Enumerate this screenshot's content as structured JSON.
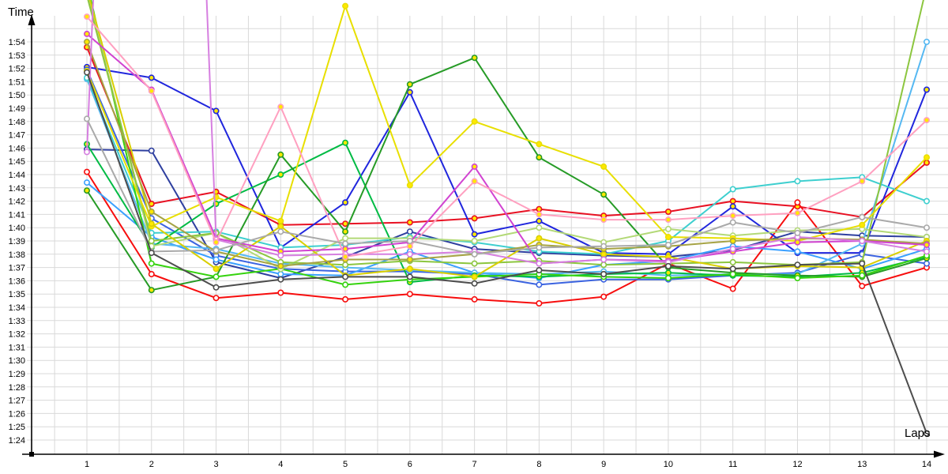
{
  "page": {
    "background": "#ffffff"
  },
  "chart_data": {
    "type": "line",
    "title": "",
    "xlabel": "Laps",
    "ylabel": "Time",
    "x": [
      1,
      2,
      3,
      4,
      5,
      6,
      7,
      8,
      9,
      10,
      11,
      12,
      13,
      14
    ],
    "x_labels": [
      "1",
      "2",
      "3",
      "4",
      "5",
      "6",
      "7",
      "8",
      "9",
      "10",
      "11",
      "12",
      "13",
      "14"
    ],
    "y_tick_labels": [
      "1:54",
      "1:53",
      "1:52",
      "1:51",
      "1:50",
      "1:49",
      "1:48",
      "1:47",
      "1:46",
      "1:45",
      "1:44",
      "1:43",
      "1:42",
      "1:41",
      "1:40",
      "1:39",
      "1:38",
      "1:37",
      "1:36",
      "1:35",
      "1:34",
      "1:33",
      "1:32",
      "1:31",
      "1:30",
      "1:29",
      "1:28",
      "1:27",
      "1:26",
      "1:25",
      "1:24"
    ],
    "y_unit": "lap time m:ss, stored as total seconds",
    "ylim_sec": [
      84,
      115
    ],
    "grid": true,
    "legend_position": "none",
    "grid_color": "#d9d9d9",
    "axis_color": "#000000",
    "series": [
      {
        "name": "red",
        "color": "#e81123",
        "marker_fill": "#ffe800",
        "values_sec": [
          113.6,
          101.8,
          102.7,
          100.2,
          100.3,
          100.4,
          100.7,
          101.4,
          100.9,
          101.2,
          102.0,
          101.6,
          100.8,
          104.9
        ]
      },
      {
        "name": "scarlet",
        "color": "#f70d0d",
        "marker_fill": "#ffffff",
        "values_sec": [
          104.2,
          96.5,
          94.7,
          95.1,
          94.6,
          95.0,
          94.6,
          94.3,
          94.8,
          97.3,
          95.4,
          101.9,
          95.6,
          97.0
        ]
      },
      {
        "name": "blue",
        "color": "#2026dd",
        "marker_fill": "#ffe800",
        "values_sec": [
          112.1,
          111.3,
          108.8,
          98.5,
          101.9,
          110.2,
          99.5,
          100.5,
          98.1,
          98.0,
          101.6,
          98.1,
          98.1,
          110.4
        ]
      },
      {
        "name": "navy",
        "color": "#2e3f9f",
        "marker_fill": "#ffffff",
        "values_sec": [
          105.9,
          105.8,
          97.4,
          96.2,
          97.8,
          99.7,
          98.4,
          98.1,
          97.9,
          97.8,
          98.3,
          99.7,
          99.4,
          99.3
        ]
      },
      {
        "name": "mediumblue",
        "color": "#3b63e0",
        "marker_fill": "#ffffff",
        "values_sec": [
          111.9,
          100.7,
          97.9,
          96.9,
          96.7,
          96.7,
          96.5,
          95.7,
          96.1,
          96.1,
          96.4,
          96.6,
          98.0,
          97.3
        ]
      },
      {
        "name": "dodgerblue",
        "color": "#3aa0ff",
        "marker_fill": "#ffffff",
        "values_sec": [
          103.4,
          99.3,
          97.6,
          96.5,
          96.4,
          98.2,
          96.6,
          96.2,
          97.2,
          97.5,
          98.6,
          98.2,
          96.9,
          98.4
        ]
      },
      {
        "name": "skyblue",
        "color": "#55b8f2",
        "marker_fill": "#ffffff",
        "values_sec": [
          111.2,
          98.8,
          98.4,
          97.3,
          97.0,
          96.8,
          96.6,
          96.5,
          96.7,
          96.4,
          96.5,
          96.5,
          98.8,
          114.0
        ]
      },
      {
        "name": "cyan",
        "color": "#3ecfcf",
        "marker_fill": "#ffffff",
        "values_sec": [
          111.3,
          99.6,
          99.7,
          98.5,
          98.7,
          99.3,
          98.9,
          98.2,
          98.0,
          99.0,
          102.9,
          103.5,
          103.8,
          102.0
        ]
      },
      {
        "name": "green",
        "color": "#00bb44",
        "marker_fill": "#ffe800",
        "values_sec": [
          106.3,
          98.5,
          101.8,
          104.0,
          106.4,
          95.9,
          96.4,
          96.3,
          96.5,
          96.6,
          96.4,
          96.3,
          96.6,
          97.8
        ]
      },
      {
        "name": "forestgreen",
        "color": "#269b26",
        "marker_fill": "#ffe800",
        "values_sec": [
          102.8,
          95.3,
          96.3,
          105.5,
          99.7,
          110.8,
          112.8,
          105.3,
          102.5,
          97.0,
          96.6,
          96.4,
          96.3,
          97.7
        ]
      },
      {
        "name": "lime",
        "color": "#35d30e",
        "marker_fill": "#ffffff",
        "values_sec": [
          118.5,
          97.3,
          96.3,
          96.9,
          95.7,
          96.1,
          96.3,
          96.5,
          96.3,
          96.2,
          96.5,
          96.2,
          96.4,
          97.9
        ]
      },
      {
        "name": "palegreen",
        "color": "#b3d977",
        "marker_fill": "#ffffff",
        "values_sec": [
          118.0,
          98.6,
          99.6,
          96.9,
          99.2,
          99.2,
          99.0,
          100.0,
          98.9,
          99.9,
          99.4,
          99.8,
          99.9,
          99.3
        ]
      },
      {
        "name": "chartreuse",
        "color": "#8cc63f",
        "marker_fill": "#ffffff",
        "values_sec": [
          117.5,
          99.0,
          99.6,
          97.4,
          97.2,
          97.5,
          97.3,
          97.5,
          97.2,
          97.3,
          97.4,
          97.2,
          97.4,
          118.2
        ]
      },
      {
        "name": "yellow",
        "color": "#e8df00",
        "marker_fill": "#ffe800",
        "values_sec": [
          111.8,
          100.1,
          102.3,
          100.5,
          116.7,
          103.2,
          108.0,
          106.3,
          104.6,
          99.3,
          99.2,
          99.0,
          100.2,
          105.3
        ]
      },
      {
        "name": "gold",
        "color": "#d9cf00",
        "marker_fill": "#ffe800",
        "values_sec": [
          118.0,
          100.3,
          96.9,
          100.1,
          96.4,
          96.9,
          96.3,
          99.2,
          98.0,
          97.8,
          96.9,
          97.1,
          97.0,
          99.0
        ]
      },
      {
        "name": "olive",
        "color": "#a6a344",
        "marker_fill": "#ffe800",
        "values_sec": [
          114.0,
          101.2,
          98.2,
          97.1,
          97.6,
          97.6,
          98.0,
          98.7,
          98.4,
          98.6,
          99.0,
          99.2,
          99.1,
          98.8
        ]
      },
      {
        "name": "magenta",
        "color": "#d143d1",
        "marker_fill": "#ffe800",
        "values_sec": [
          114.6,
          110.4,
          99.2,
          98.2,
          98.4,
          98.9,
          104.6,
          97.3,
          97.6,
          97.5,
          98.2,
          98.9,
          99.0,
          98.7
        ]
      },
      {
        "name": "violet",
        "color": "#d67fe0",
        "marker_fill": "#ffffff",
        "values_sec": [
          105.7,
          223.0,
          99.1,
          97.9,
          98.0,
          98.0,
          98.2,
          97.3,
          97.6,
          97.4,
          98.4,
          99.3,
          99.0,
          98.2
        ]
      },
      {
        "name": "pink",
        "color": "#ffa0c0",
        "marker_fill": "#ffe800",
        "values_sec": [
          115.9,
          110.3,
          98.9,
          109.1,
          97.8,
          98.6,
          103.5,
          101.0,
          100.6,
          100.6,
          100.9,
          101.1,
          103.5,
          108.1
        ]
      },
      {
        "name": "gray",
        "color": "#a9a9a9",
        "marker_fill": "#ffffff",
        "values_sec": [
          108.2,
          98.2,
          98.3,
          99.7,
          98.8,
          99.0,
          98.0,
          98.5,
          98.6,
          98.7,
          100.4,
          99.6,
          100.8,
          100.0
        ]
      },
      {
        "name": "darkgray",
        "color": "#4d4d4d",
        "marker_fill": "#ffffff",
        "values_sec": [
          111.7,
          98.1,
          95.5,
          96.1,
          96.3,
          96.3,
          95.8,
          96.8,
          96.5,
          97.1,
          96.9,
          97.2,
          97.3,
          84.5
        ]
      }
    ]
  },
  "labels": {
    "y_axis_title": "Time",
    "x_axis_title": "Laps"
  }
}
